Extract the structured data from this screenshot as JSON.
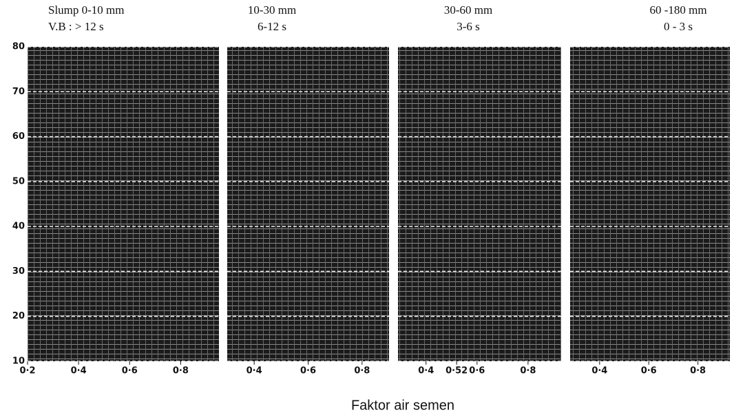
{
  "chart_data": [
    {
      "type": "line",
      "title": "Slump 0-10 mm",
      "subtitle": "V.B :  > 12 s",
      "xlim": [
        0.2,
        0.95
      ],
      "xticks": [
        {
          "value": 0.2,
          "label": "0·2"
        },
        {
          "value": 0.4,
          "label": "0·4"
        },
        {
          "value": 0.6,
          "label": "0·6"
        },
        {
          "value": 0.8,
          "label": "0·8"
        }
      ],
      "ylim": [
        10,
        80
      ],
      "yticks": [
        10,
        20,
        30,
        40,
        50,
        60,
        70,
        80
      ],
      "grid": true
    },
    {
      "type": "line",
      "title": "10-30 mm",
      "subtitle": "6-12 s",
      "xlim": [
        0.3,
        0.9
      ],
      "xticks": [
        {
          "value": 0.4,
          "label": "0·4"
        },
        {
          "value": 0.6,
          "label": "0·6"
        },
        {
          "value": 0.8,
          "label": "0·8"
        }
      ],
      "ylim": [
        10,
        80
      ],
      "yticks": [
        10,
        20,
        30,
        40,
        50,
        60,
        70,
        80
      ],
      "grid": true
    },
    {
      "type": "line",
      "title": "30-60 mm",
      "subtitle": "3-6 s",
      "xlim": [
        0.29,
        0.93
      ],
      "xticks": [
        {
          "value": 0.4,
          "label": "0·4"
        },
        {
          "value": 0.52,
          "label": "0·52"
        },
        {
          "value": 0.6,
          "label": "0·6"
        },
        {
          "value": 0.8,
          "label": "0·8"
        }
      ],
      "ylim": [
        10,
        80
      ],
      "yticks": [
        10,
        20,
        30,
        40,
        50,
        60,
        70,
        80
      ],
      "grid": true
    },
    {
      "type": "line",
      "title": "60 -180 mm",
      "subtitle": "0 - 3 s",
      "xlim": [
        0.28,
        0.93
      ],
      "xticks": [
        {
          "value": 0.4,
          "label": "0·4"
        },
        {
          "value": 0.6,
          "label": "0·6"
        },
        {
          "value": 0.8,
          "label": "0·8"
        }
      ],
      "ylim": [
        10,
        80
      ],
      "yticks": [
        10,
        20,
        30,
        40,
        50,
        60,
        70,
        80
      ],
      "grid": true
    }
  ],
  "x_label": "Faktor air semen"
}
